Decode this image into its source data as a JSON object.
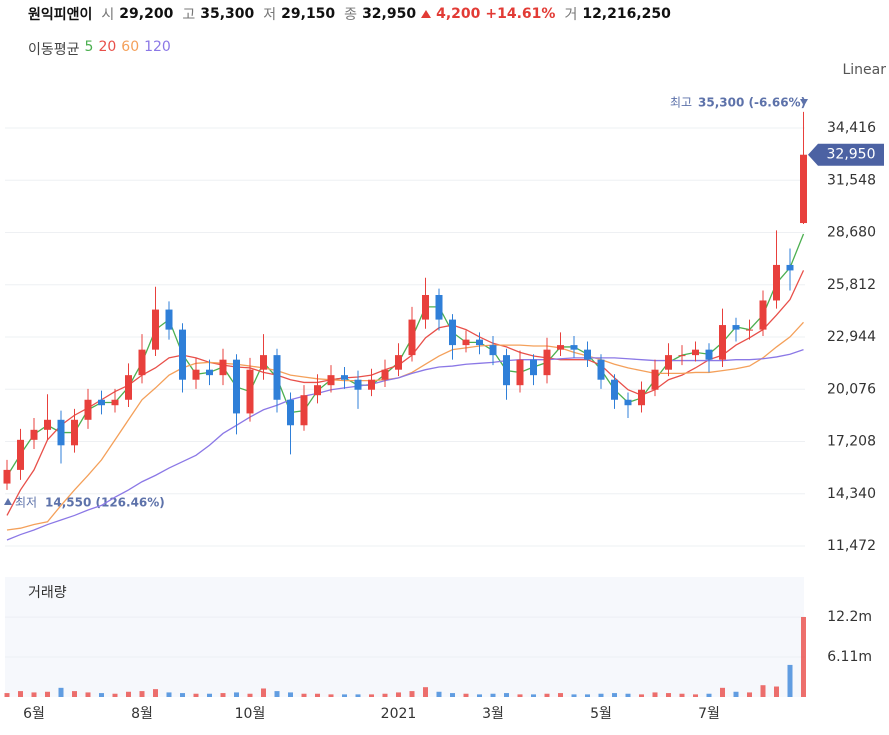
{
  "header": {
    "name": "원익피앤이",
    "fields": [
      {
        "label": "시",
        "value": "29,200"
      },
      {
        "label": "고",
        "value": "35,300"
      },
      {
        "label": "저",
        "value": "29,150"
      },
      {
        "label": "종",
        "value": "32,950"
      }
    ],
    "change": "4,200",
    "change_pct": "+14.61%",
    "volume_field": {
      "label": "거",
      "value": "12,216,250"
    }
  },
  "chart_data": [
    {
      "type": "candlestick",
      "legend_title": "이동평균",
      "scale_label": "Linear",
      "categories": [
        null,
        null,
        "6월",
        null,
        null,
        null,
        null,
        null,
        null,
        null,
        "8월",
        null,
        null,
        null,
        null,
        null,
        null,
        null,
        "10월",
        null,
        null,
        null,
        null,
        null,
        null,
        null,
        null,
        null,
        null,
        "2021",
        null,
        null,
        null,
        null,
        null,
        null,
        "3월",
        null,
        null,
        null,
        null,
        null,
        null,
        null,
        "5월",
        null,
        null,
        null,
        null,
        null,
        null,
        null,
        "7월",
        null,
        null,
        null,
        null,
        null,
        null,
        null
      ],
      "open": [
        14900,
        15650,
        17300,
        17850,
        18400,
        17000,
        18400,
        19500,
        19200,
        19500,
        20850,
        22250,
        24450,
        23350,
        20600,
        21150,
        20850,
        21700,
        18750,
        21150,
        21950,
        19500,
        18100,
        19750,
        20300,
        20850,
        20600,
        20050,
        20600,
        21150,
        21950,
        23900,
        25250,
        23900,
        22500,
        22800,
        22500,
        21950,
        20300,
        21700,
        20850,
        22250,
        22500,
        22250,
        21700,
        20600,
        19500,
        19200,
        20050,
        21150,
        21950,
        21950,
        22250,
        21700,
        23600,
        23350,
        23350,
        24950,
        26900,
        29200
      ],
      "high": [
        16200,
        17900,
        18500,
        19800,
        18900,
        19000,
        20100,
        20000,
        20100,
        21500,
        23100,
        25700,
        24900,
        23700,
        21800,
        21700,
        22300,
        22000,
        21800,
        23100,
        22300,
        19900,
        20300,
        20900,
        21400,
        21300,
        21100,
        21200,
        21700,
        22600,
        24600,
        26200,
        25600,
        24200,
        23300,
        23200,
        23000,
        22300,
        22200,
        22000,
        22900,
        23200,
        23000,
        22700,
        22000,
        20900,
        19900,
        20500,
        21700,
        22600,
        22500,
        22700,
        22600,
        24500,
        24000,
        23900,
        25500,
        28800,
        27800,
        35300
      ],
      "low": [
        14550,
        15100,
        16800,
        17300,
        16000,
        16600,
        17900,
        18700,
        18800,
        19100,
        20400,
        21900,
        22800,
        19900,
        20100,
        20300,
        20300,
        17600,
        18300,
        20600,
        18800,
        16500,
        17800,
        19300,
        19900,
        20100,
        19000,
        19700,
        20200,
        20800,
        21600,
        23400,
        23300,
        21700,
        22100,
        22000,
        21400,
        19500,
        19900,
        20300,
        20400,
        21900,
        21800,
        21300,
        20100,
        19000,
        18500,
        18800,
        19700,
        20800,
        21400,
        21600,
        21000,
        21300,
        22700,
        22800,
        23000,
        24500,
        25500,
        29150
      ],
      "close": [
        15650,
        17300,
        17850,
        18400,
        17000,
        18400,
        19500,
        19200,
        19500,
        20850,
        22250,
        24450,
        23350,
        20600,
        21150,
        20850,
        21700,
        18750,
        21150,
        21950,
        19500,
        18100,
        19750,
        20300,
        20850,
        20600,
        20050,
        20600,
        21150,
        21950,
        23900,
        25250,
        23900,
        22500,
        22800,
        22500,
        21950,
        20300,
        21700,
        20850,
        22250,
        22500,
        22250,
        21700,
        20600,
        19500,
        19200,
        20050,
        21150,
        21950,
        21950,
        22250,
        21700,
        23600,
        23350,
        23350,
        24950,
        26900,
        26600,
        32950
      ],
      "up_color": "#e8403c",
      "down_color": "#2f7fd8",
      "series": [
        {
          "name": "5",
          "color": "#4caf50",
          "values": [
            15300,
            16500,
            17600,
            18100,
            17700,
            17700,
            18950,
            19350,
            19350,
            20200,
            21550,
            23350,
            23900,
            22000,
            20900,
            21000,
            21300,
            20200,
            19950,
            21550,
            20700,
            18800,
            18900,
            20000,
            20600,
            20700,
            20300,
            20300,
            20900,
            21550,
            22900,
            24600,
            24600,
            23200,
            22650,
            22650,
            22200,
            21100,
            21000,
            21300,
            21550,
            22400,
            22400,
            22000,
            21150,
            20050,
            19350,
            19600,
            20600,
            21550,
            21950,
            22100,
            22000,
            22650,
            23500,
            23350,
            24150,
            25900,
            26750,
            28600
          ]
        },
        {
          "name": "20",
          "color": "#e8504a",
          "values": [
            13150,
            14550,
            15650,
            17300,
            18100,
            18650,
            19050,
            19500,
            19950,
            20300,
            20850,
            21250,
            21800,
            21950,
            21800,
            21550,
            21400,
            21300,
            21250,
            21000,
            20850,
            20600,
            20450,
            20450,
            20600,
            20700,
            20750,
            20850,
            21150,
            21400,
            21950,
            22900,
            23450,
            23600,
            23350,
            22950,
            22600,
            22400,
            22100,
            21900,
            21800,
            21700,
            21700,
            21700,
            21400,
            20700,
            20050,
            19750,
            20050,
            20600,
            20850,
            21250,
            21700,
            21950,
            22500,
            22900,
            23350,
            24150,
            25000,
            26600
          ]
        },
        {
          "name": "60",
          "color": "#f4a05a",
          "values": [
            12350,
            12450,
            12650,
            12800,
            13700,
            14550,
            15350,
            16200,
            17300,
            18400,
            19500,
            20150,
            20850,
            21250,
            21500,
            21550,
            21500,
            21450,
            21350,
            21250,
            21100,
            20850,
            20750,
            20650,
            20600,
            20550,
            20550,
            20550,
            20600,
            20700,
            21000,
            21450,
            21900,
            22250,
            22350,
            22450,
            22500,
            22500,
            22500,
            22450,
            22450,
            22350,
            22100,
            21900,
            21700,
            21450,
            21250,
            21100,
            20950,
            20950,
            20950,
            21000,
            21000,
            21100,
            21200,
            21350,
            21800,
            22400,
            22950,
            23750
          ]
        },
        {
          "name": "120",
          "color": "#8b78e6",
          "values": [
            11800,
            12100,
            12350,
            12650,
            12900,
            13150,
            13450,
            13700,
            14150,
            14550,
            15000,
            15350,
            15750,
            16100,
            16450,
            17000,
            17650,
            18100,
            18550,
            18950,
            19200,
            19500,
            19700,
            19850,
            20050,
            20150,
            20250,
            20350,
            20550,
            20700,
            20950,
            21150,
            21300,
            21350,
            21450,
            21500,
            21550,
            21650,
            21700,
            21700,
            21700,
            21750,
            21800,
            21800,
            21800,
            21800,
            21750,
            21700,
            21650,
            21650,
            21650,
            21650,
            21650,
            21650,
            21700,
            21700,
            21750,
            21850,
            22000,
            22250
          ]
        }
      ],
      "ylim": [
        10704,
        36777
      ],
      "yticks": [
        {
          "value": 11472,
          "label": "11,472"
        },
        {
          "value": 14340,
          "label": "14,340"
        },
        {
          "value": 17208,
          "label": "17,208"
        },
        {
          "value": 20076,
          "label": "20,076"
        },
        {
          "value": 22944,
          "label": "22,944"
        },
        {
          "value": 25812,
          "label": "25,812"
        },
        {
          "value": 28680,
          "label": "28,680"
        },
        {
          "value": 31548,
          "label": "31,548"
        },
        {
          "value": 34416,
          "label": "34,416"
        }
      ],
      "grid": true,
      "last_price": {
        "value": 32950,
        "label": "32,950"
      },
      "annotations": [
        {
          "label": "최고",
          "text": "35,300 (-6.66%)"
        },
        {
          "label": "최저",
          "text": "14,550 (126.46%)"
        }
      ]
    },
    {
      "type": "bar",
      "title": "거래량",
      "values": [
        600000,
        900000,
        700000,
        800000,
        1400000,
        900000,
        700000,
        600000,
        500000,
        800000,
        900000,
        1200000,
        700000,
        600000,
        500000,
        500000,
        600000,
        700000,
        500000,
        1300000,
        900000,
        700000,
        500000,
        500000,
        400000,
        400000,
        400000,
        400000,
        500000,
        700000,
        900000,
        1500000,
        800000,
        600000,
        500000,
        400000,
        500000,
        600000,
        400000,
        400000,
        500000,
        600000,
        400000,
        400000,
        500000,
        600000,
        500000,
        400000,
        700000,
        600000,
        500000,
        400000,
        500000,
        1400000,
        800000,
        700000,
        1800000,
        1600000,
        4900000,
        12216250
      ],
      "ylim": [
        0,
        18170000
      ],
      "yticks": [
        {
          "value": 6110000,
          "label": "6.11m"
        },
        {
          "value": 12200000,
          "label": "12.2m"
        }
      ]
    }
  ]
}
